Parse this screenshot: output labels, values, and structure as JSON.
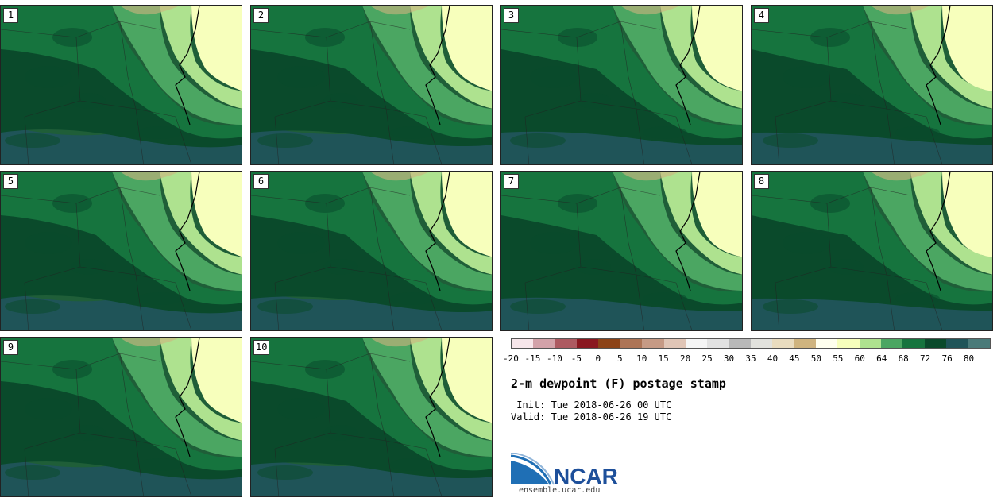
{
  "members": [
    "1",
    "2",
    "3",
    "4",
    "5",
    "6",
    "7",
    "8",
    "9",
    "10"
  ],
  "colorbar": {
    "colors": [
      "#f7e6ea",
      "#d3a2a9",
      "#ad5a61",
      "#8a1820",
      "#8c4318",
      "#ad7456",
      "#c69a85",
      "#e0c5b6",
      "#f5f5f5",
      "#e2e2e2",
      "#b9b9b9",
      "#e2e2dd",
      "#e9dcbf",
      "#cfb47f",
      "#ffffee",
      "#f7ffbc",
      "#aee28f",
      "#4ba662",
      "#16743e",
      "#0a4a2b",
      "#1f5458",
      "#4a7a79"
    ],
    "ticks": [
      "-20",
      "-15",
      "-10",
      "-5",
      "0",
      "5",
      "10",
      "15",
      "20",
      "25",
      "30",
      "35",
      "40",
      "45",
      "50",
      "55",
      "60",
      "64",
      "68",
      "72",
      "76",
      "80"
    ]
  },
  "title": "2-m dewpoint (F) postage stamp",
  "init_line": " Init: Tue 2018-06-26 00 UTC",
  "valid_line": "Valid: Tue 2018-06-26 19 UTC",
  "logo": {
    "text": "NCAR",
    "color": "#1d4f9a"
  },
  "website": "ensemble.ucar.edu"
}
